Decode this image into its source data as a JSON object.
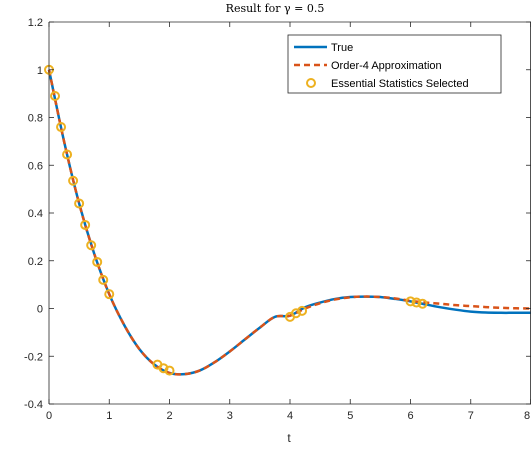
{
  "chart_data": {
    "type": "line",
    "title": "Result for γ = 0.5",
    "xlabel": "t",
    "ylabel": "",
    "xlim": [
      0,
      8
    ],
    "ylim": [
      -0.4,
      1.2
    ],
    "xticks": [
      "0",
      "1",
      "2",
      "3",
      "4",
      "5",
      "6",
      "7",
      "8"
    ],
    "yticks": [
      "-0.4",
      "-0.2",
      "0",
      "0.2",
      "0.4",
      "0.6",
      "0.8",
      "1",
      "1.2"
    ],
    "grid": false,
    "legend_position": "top-right",
    "series": [
      {
        "name": "True",
        "style": "solid",
        "color": "#0072BD",
        "x": [
          0,
          0.25,
          0.5,
          0.75,
          1.0,
          1.25,
          1.5,
          1.75,
          2.0,
          2.25,
          2.5,
          2.75,
          3.0,
          3.25,
          3.5,
          3.75,
          4.0,
          4.25,
          4.5,
          4.75,
          5.0,
          5.25,
          5.5,
          5.75,
          6.0,
          6.25,
          6.5,
          6.75,
          7.0,
          7.25,
          7.5,
          7.75,
          8.0
        ],
        "y": [
          1.0,
          0.7,
          0.44,
          0.23,
          0.06,
          -0.07,
          -0.17,
          -0.235,
          -0.27,
          -0.275,
          -0.26,
          -0.225,
          -0.18,
          -0.13,
          -0.08,
          -0.035,
          -0.03,
          0.005,
          0.025,
          0.04,
          0.048,
          0.05,
          0.048,
          0.04,
          0.03,
          0.017,
          0.005,
          -0.005,
          -0.013,
          -0.017,
          -0.018,
          -0.018,
          -0.018
        ]
      },
      {
        "name": "Order-4 Approximation",
        "style": "dashed",
        "color": "#D95319",
        "x": [
          0,
          0.25,
          0.5,
          0.75,
          1.0,
          1.25,
          1.5,
          1.75,
          2.0,
          2.25,
          2.5,
          2.75,
          3.0,
          3.25,
          3.5,
          3.75,
          4.0,
          4.25,
          4.5,
          4.75,
          5.0,
          5.25,
          5.5,
          5.75,
          6.0,
          6.25,
          6.5,
          6.75,
          7.0,
          7.25,
          7.5,
          7.75,
          8.0
        ],
        "y": [
          1.0,
          0.7,
          0.44,
          0.23,
          0.06,
          -0.07,
          -0.17,
          -0.235,
          -0.27,
          -0.275,
          -0.26,
          -0.225,
          -0.18,
          -0.13,
          -0.08,
          -0.035,
          -0.03,
          0.0,
          0.022,
          0.038,
          0.047,
          0.05,
          0.048,
          0.042,
          0.032,
          0.025,
          0.02,
          0.014,
          0.01,
          0.006,
          0.003,
          0.001,
          0.0
        ]
      },
      {
        "name": "Essential Statistics Selected",
        "style": "markers",
        "color": "#EDB120",
        "x": [
          0.0,
          0.1,
          0.2,
          0.3,
          0.4,
          0.5,
          0.6,
          0.7,
          0.8,
          0.9,
          1.0,
          1.8,
          1.9,
          2.0,
          4.0,
          4.1,
          4.2,
          6.0,
          6.1,
          6.2
        ],
        "y": [
          1.0,
          0.89,
          0.76,
          0.645,
          0.535,
          0.44,
          0.35,
          0.265,
          0.195,
          0.12,
          0.06,
          -0.235,
          -0.25,
          -0.26,
          -0.035,
          -0.02,
          -0.01,
          0.03,
          0.025,
          0.02
        ]
      }
    ]
  }
}
